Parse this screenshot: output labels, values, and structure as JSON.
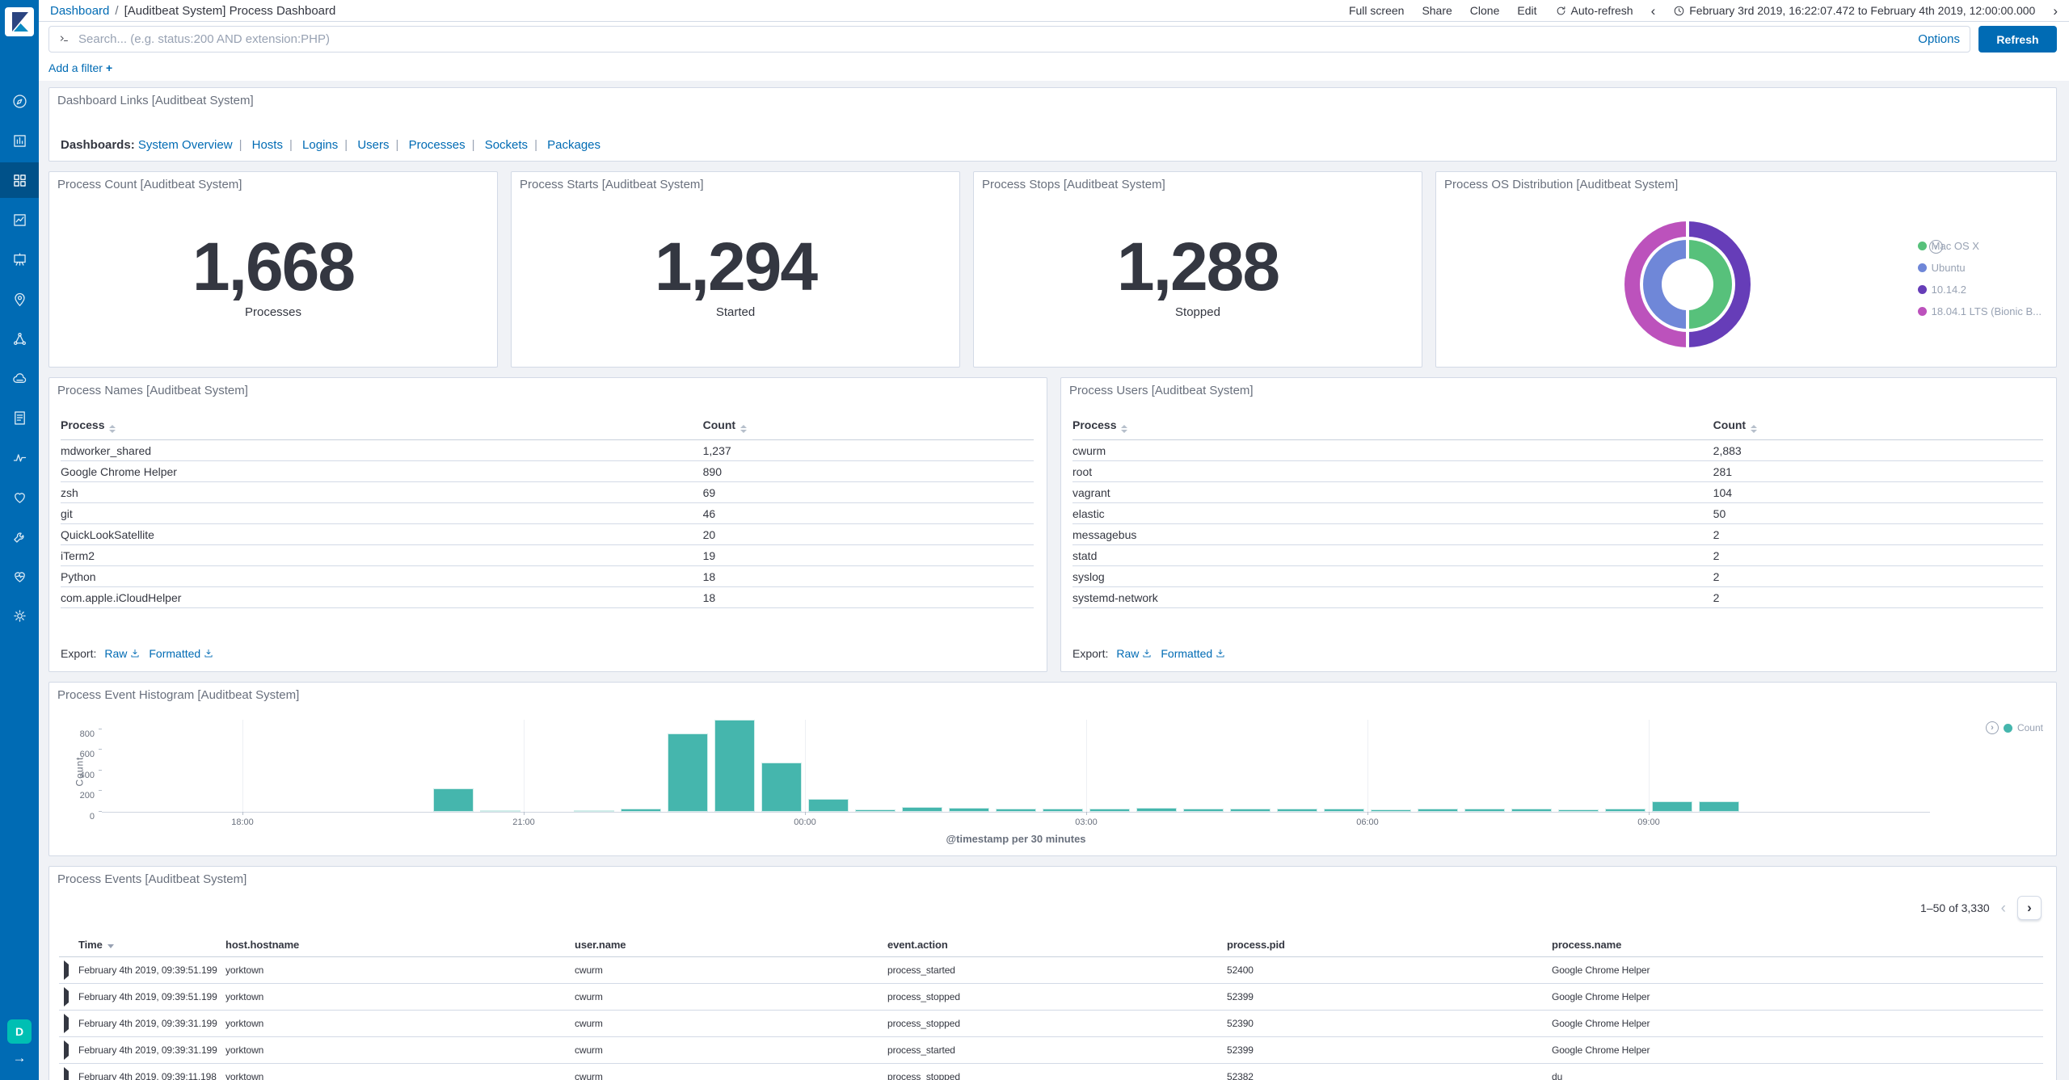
{
  "chrome": {
    "breadcrumb": {
      "root": "Dashboard",
      "separator": "/",
      "current": "[Auditbeat System] Process Dashboard"
    },
    "toolbar_links": [
      "Full screen",
      "Share",
      "Clone",
      "Edit"
    ],
    "auto_refresh_label": "Auto-refresh",
    "time_prev": "‹",
    "time_next": "›",
    "time_range": "February 3rd 2019, 16:22:07.472 to February 4th 2019, 12:00:00.000",
    "search": {
      "placeholder": "Search... (e.g. status:200 AND extension:PHP)",
      "options_label": "Options",
      "refresh_label": "Refresh"
    },
    "add_filter": {
      "label": "Add a filter",
      "plus": "+"
    }
  },
  "sidebar": {
    "space_badge": "D",
    "collapse_arrow": "→",
    "items": [
      {
        "id": "discover",
        "icon": "discover",
        "active": false
      },
      {
        "id": "visualize",
        "icon": "visualize",
        "active": false
      },
      {
        "id": "dashboard",
        "icon": "dashboard",
        "active": true
      },
      {
        "id": "timelion",
        "icon": "timelion",
        "active": false
      },
      {
        "id": "canvas",
        "icon": "canvas",
        "active": false
      },
      {
        "id": "maps",
        "icon": "maps",
        "active": false
      },
      {
        "id": "machine-learning",
        "icon": "ml",
        "active": false
      },
      {
        "id": "infrastructure",
        "icon": "infrastructure",
        "active": false
      },
      {
        "id": "logs",
        "icon": "logs",
        "active": false
      },
      {
        "id": "apm",
        "icon": "apm",
        "active": false
      },
      {
        "id": "uptime",
        "icon": "uptime",
        "active": false
      },
      {
        "id": "dev-tools",
        "icon": "devtools",
        "active": false
      },
      {
        "id": "monitoring",
        "icon": "monitoring",
        "active": false
      },
      {
        "id": "management",
        "icon": "management",
        "active": false
      }
    ]
  },
  "panels": {
    "links": {
      "title": "Dashboard Links [Auditbeat System]",
      "label": "Dashboards:",
      "links": [
        "System Overview",
        "Hosts",
        "Logins",
        "Users",
        "Processes",
        "Sockets",
        "Packages"
      ],
      "separator": "|"
    },
    "metrics": [
      {
        "title": "Process Count [Auditbeat System]",
        "value": "1,668",
        "label": "Processes"
      },
      {
        "title": "Process Starts [Auditbeat System]",
        "value": "1,294",
        "label": "Started"
      },
      {
        "title": "Process Stops [Auditbeat System]",
        "value": "1,288",
        "label": "Stopped"
      }
    ],
    "os_distribution": {
      "title": "Process OS Distribution [Auditbeat System]"
    },
    "process_names": {
      "title": "Process Names [Auditbeat System]",
      "columns": [
        "Process",
        "Count"
      ],
      "rows": [
        [
          "mdworker_shared",
          "1,237"
        ],
        [
          "Google Chrome Helper",
          "890"
        ],
        [
          "zsh",
          "69"
        ],
        [
          "git",
          "46"
        ],
        [
          "QuickLookSatellite",
          "20"
        ],
        [
          "iTerm2",
          "19"
        ],
        [
          "Python",
          "18"
        ],
        [
          "com.apple.iCloudHelper",
          "18"
        ]
      ]
    },
    "process_users": {
      "title": "Process Users [Auditbeat System]",
      "columns": [
        "Process",
        "Count"
      ],
      "rows": [
        [
          "cwurm",
          "2,883"
        ],
        [
          "root",
          "281"
        ],
        [
          "vagrant",
          "104"
        ],
        [
          "elastic",
          "50"
        ],
        [
          "messagebus",
          "2"
        ],
        [
          "statd",
          "2"
        ],
        [
          "syslog",
          "2"
        ],
        [
          "systemd-network",
          "2"
        ]
      ]
    },
    "export_links": {
      "label": "Export:",
      "raw": "Raw",
      "formatted": "Formatted"
    },
    "histogram": {
      "title": "Process Event Histogram [Auditbeat System]"
    },
    "events": {
      "title": "Process Events [Auditbeat System]",
      "pagination": "1–50 of 3,330",
      "columns": [
        "Time",
        "host.hostname",
        "user.name",
        "event.action",
        "process.pid",
        "process.name"
      ],
      "rows": [
        {
          "time": "February 4th 2019, 09:39:51.199",
          "host": "yorktown",
          "user": "cwurm",
          "action": "process_started",
          "pid": "52400",
          "name": "Google Chrome Helper"
        },
        {
          "time": "February 4th 2019, 09:39:51.199",
          "host": "yorktown",
          "user": "cwurm",
          "action": "process_stopped",
          "pid": "52399",
          "name": "Google Chrome Helper"
        },
        {
          "time": "February 4th 2019, 09:39:31.199",
          "host": "yorktown",
          "user": "cwurm",
          "action": "process_stopped",
          "pid": "52390",
          "name": "Google Chrome Helper"
        },
        {
          "time": "February 4th 2019, 09:39:31.199",
          "host": "yorktown",
          "user": "cwurm",
          "action": "process_started",
          "pid": "52399",
          "name": "Google Chrome Helper"
        },
        {
          "time": "February 4th 2019, 09:39:11.198",
          "host": "yorktown",
          "user": "cwurm",
          "action": "process_stopped",
          "pid": "52382",
          "name": "du"
        }
      ]
    }
  },
  "chart_data": [
    {
      "type": "pie",
      "title": "Process OS Distribution [Auditbeat System]",
      "donut": true,
      "rings": {
        "inner": [
          {
            "label": "Mac OS X",
            "value": 50,
            "color": "#57C17B"
          },
          {
            "label": "Ubuntu",
            "value": 50,
            "color": "#6F87D8"
          }
        ],
        "outer": [
          {
            "label": "10.14.2",
            "value": 50,
            "color": "#663DB8"
          },
          {
            "label": "18.04.1 LTS (Bionic B...",
            "value": 50,
            "color": "#BC52BC"
          }
        ]
      },
      "legend": [
        {
          "label": "Mac OS X",
          "color": "#57C17B"
        },
        {
          "label": "Ubuntu",
          "color": "#6F87D8"
        },
        {
          "label": "10.14.2",
          "color": "#663DB8"
        },
        {
          "label": "18.04.1 LTS (Bionic B...",
          "color": "#BC52BC"
        }
      ],
      "legend_position": "right"
    },
    {
      "type": "bar",
      "title": "Process Event Histogram [Auditbeat System]",
      "categories": [
        "16:30",
        "17:00",
        "17:30",
        "18:00",
        "18:30",
        "19:00",
        "19:30",
        "20:00",
        "20:30",
        "21:00",
        "21:30",
        "22:00",
        "22:30",
        "23:00",
        "23:30",
        "00:00",
        "00:30",
        "01:00",
        "01:30",
        "02:00",
        "02:30",
        "03:00",
        "03:30",
        "04:00",
        "04:30",
        "05:00",
        "05:30",
        "06:00",
        "06:30",
        "07:00",
        "07:30",
        "08:00",
        "08:30",
        "09:00",
        "09:30",
        "10:00",
        "10:30",
        "11:00",
        "11:30"
      ],
      "values": [
        0,
        0,
        0,
        0,
        0,
        0,
        0,
        230,
        12,
        0,
        6,
        35,
        760,
        890,
        480,
        125,
        25,
        45,
        38,
        35,
        30,
        30,
        42,
        30,
        33,
        35,
        30,
        25,
        30,
        35,
        32,
        25,
        30,
        100,
        100,
        0,
        0,
        0,
        0
      ],
      "x_tick_labels": [
        "18:00",
        "21:00",
        "00:00",
        "03:00",
        "06:00",
        "09:00"
      ],
      "x_tick_indices": [
        3,
        9,
        15,
        21,
        27,
        33
      ],
      "y_ticks": [
        0,
        200,
        400,
        600,
        800
      ],
      "ylim": [
        0,
        900
      ],
      "xlabel": "@timestamp per 30 minutes",
      "ylabel": "Count",
      "legend_label": "Count",
      "bar_color": "#45B6AD",
      "grid": true,
      "legend_position": "top-right"
    }
  ]
}
